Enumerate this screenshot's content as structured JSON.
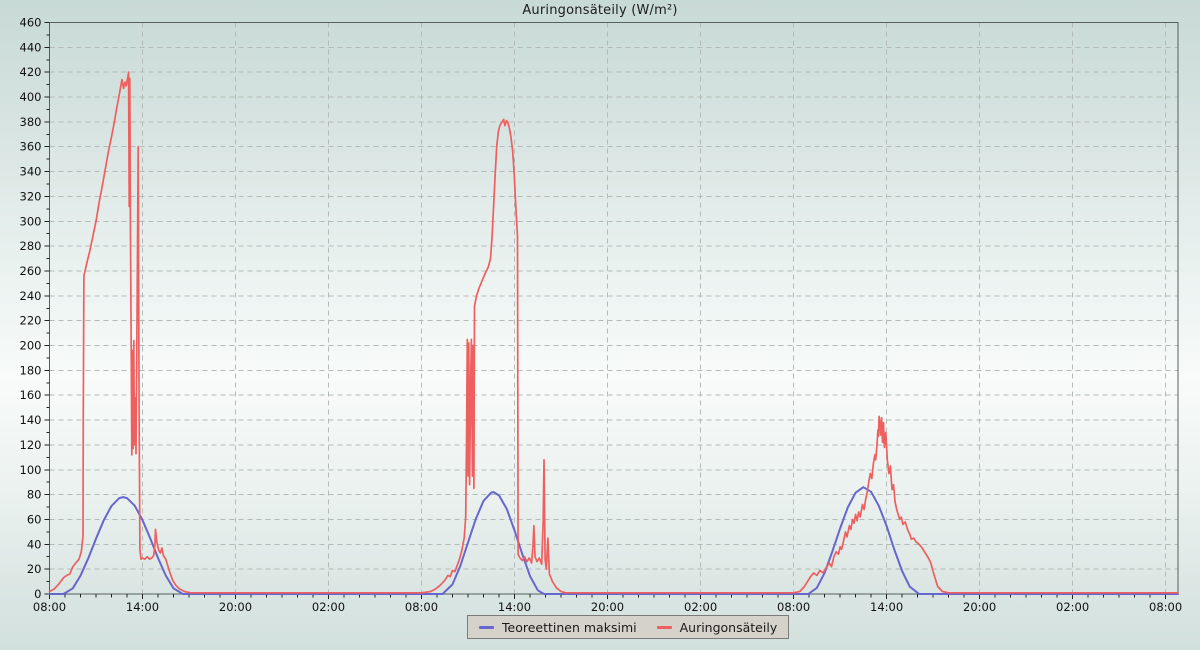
{
  "window": {
    "title": "Auringonsäteily (W/m²)"
  },
  "legend": {
    "items": [
      {
        "label": "Teoreettinen maksimi",
        "color": "#6666cf"
      },
      {
        "label": "Auringonsäteily",
        "color": "#ee5f5f"
      }
    ]
  },
  "chart_data": {
    "type": "line",
    "title": "Auringonsäteily (W/m²)",
    "ylabel": "W/m²",
    "x_unit": "time of day over three consecutive days, labels every 6 h",
    "x_range_hours": [
      0,
      72.8
    ],
    "ylim": [
      0,
      460
    ],
    "y_major_step": 20,
    "y_minor_step": 10,
    "x_major_step_hours": 6,
    "x_minor_step_hours": 1,
    "x_tick_labels": [
      "08:00",
      "14:00",
      "20:00",
      "02:00",
      "08:00",
      "14:00",
      "20:00",
      "02:00",
      "08:00",
      "14:00",
      "20:00",
      "02:00",
      "08:00"
    ],
    "grid": {
      "dashed": true,
      "color": "#b4bab7"
    },
    "frame_color": "#55605d",
    "tick_color": "#222222",
    "label_color": "#111111",
    "legend_position": "bottom-center",
    "series": [
      {
        "name": "Teoreettinen maksimi",
        "color": "#6666cf",
        "width": 2,
        "points": [
          [
            0,
            0
          ],
          [
            0.9,
            0
          ],
          [
            1.5,
            4.6
          ],
          [
            2,
            14.7
          ],
          [
            2.5,
            28.8
          ],
          [
            3,
            44.5
          ],
          [
            3.5,
            59.4
          ],
          [
            4,
            70.9
          ],
          [
            4.5,
            77.2
          ],
          [
            4.75,
            78
          ],
          [
            5,
            77.2
          ],
          [
            5.5,
            71
          ],
          [
            6,
            59.5
          ],
          [
            6.5,
            44.7
          ],
          [
            7,
            29
          ],
          [
            7.5,
            14.8
          ],
          [
            8,
            4.6
          ],
          [
            8.6,
            0
          ],
          [
            25.35,
            0
          ],
          [
            26,
            7.7
          ],
          [
            26.5,
            22.5
          ],
          [
            27,
            41.5
          ],
          [
            27.5,
            60.4
          ],
          [
            28,
            74.9
          ],
          [
            28.5,
            81.7
          ],
          [
            28.65,
            82
          ],
          [
            29,
            79.4
          ],
          [
            29.5,
            68.4
          ],
          [
            30,
            51.2
          ],
          [
            30.5,
            32
          ],
          [
            31,
            14.4
          ],
          [
            31.5,
            3
          ],
          [
            31.9,
            0
          ],
          [
            48.95,
            0
          ],
          [
            49.5,
            4.9
          ],
          [
            50,
            17
          ],
          [
            50.5,
            34.1
          ],
          [
            51,
            52.8
          ],
          [
            51.5,
            69.7
          ],
          [
            52,
            81.5
          ],
          [
            52.5,
            86
          ],
          [
            53,
            82.3
          ],
          [
            53.5,
            71
          ],
          [
            54,
            54.7
          ],
          [
            54.5,
            35.8
          ],
          [
            55,
            18.5
          ],
          [
            55.5,
            5.9
          ],
          [
            56.1,
            0
          ],
          [
            72.8,
            0
          ]
        ]
      },
      {
        "name": "Auringonsäteily",
        "color": "#ee5f5f",
        "width": 1.7,
        "points": [
          [
            0,
            2
          ],
          [
            0.3,
            4
          ],
          [
            0.6,
            8
          ],
          [
            0.9,
            13
          ],
          [
            1.1,
            15
          ],
          [
            1.3,
            16
          ],
          [
            1.5,
            22
          ],
          [
            1.7,
            25
          ],
          [
            1.9,
            28
          ],
          [
            2.05,
            34
          ],
          [
            2.12,
            42
          ],
          [
            2.16,
            46
          ],
          [
            2.18,
            150
          ],
          [
            2.22,
            256
          ],
          [
            2.4,
            266
          ],
          [
            2.6,
            276
          ],
          [
            2.8,
            288
          ],
          [
            3,
            300
          ],
          [
            3.2,
            315
          ],
          [
            3.4,
            328
          ],
          [
            3.6,
            342
          ],
          [
            3.8,
            356
          ],
          [
            4,
            368
          ],
          [
            4.2,
            381
          ],
          [
            4.35,
            392
          ],
          [
            4.5,
            402
          ],
          [
            4.6,
            409
          ],
          [
            4.68,
            414
          ],
          [
            4.78,
            407
          ],
          [
            4.88,
            412
          ],
          [
            4.95,
            409
          ],
          [
            5.05,
            416
          ],
          [
            5.1,
            420
          ],
          [
            5.14,
            312
          ],
          [
            5.18,
            415
          ],
          [
            5.22,
            300
          ],
          [
            5.27,
            198
          ],
          [
            5.31,
            112
          ],
          [
            5.35,
            196
          ],
          [
            5.39,
            117
          ],
          [
            5.44,
            204
          ],
          [
            5.48,
            120
          ],
          [
            5.53,
            158
          ],
          [
            5.58,
            113
          ],
          [
            5.65,
            230
          ],
          [
            5.72,
            360
          ],
          [
            5.78,
            150
          ],
          [
            5.83,
            36
          ],
          [
            5.9,
            28
          ],
          [
            6,
            29
          ],
          [
            6.15,
            28
          ],
          [
            6.3,
            30
          ],
          [
            6.45,
            28
          ],
          [
            6.6,
            29
          ],
          [
            6.72,
            31
          ],
          [
            6.8,
            40
          ],
          [
            6.84,
            52
          ],
          [
            6.92,
            42
          ],
          [
            7.05,
            35
          ],
          [
            7.15,
            33
          ],
          [
            7.25,
            37
          ],
          [
            7.35,
            31
          ],
          [
            7.5,
            28
          ],
          [
            7.65,
            22
          ],
          [
            7.8,
            16
          ],
          [
            7.95,
            11
          ],
          [
            8.15,
            7
          ],
          [
            8.4,
            4
          ],
          [
            8.7,
            2
          ],
          [
            9.1,
            1
          ],
          [
            12,
            1
          ],
          [
            18,
            1
          ],
          [
            24,
            1
          ],
          [
            24.6,
            2
          ],
          [
            24.9,
            4
          ],
          [
            25.2,
            7
          ],
          [
            25.5,
            11
          ],
          [
            25.7,
            15
          ],
          [
            25.85,
            14
          ],
          [
            26,
            19
          ],
          [
            26.15,
            18
          ],
          [
            26.3,
            23
          ],
          [
            26.45,
            28
          ],
          [
            26.6,
            35
          ],
          [
            26.75,
            45
          ],
          [
            26.85,
            62
          ],
          [
            26.9,
            120
          ],
          [
            26.95,
            205
          ],
          [
            27,
            95
          ],
          [
            27.05,
            202
          ],
          [
            27.1,
            88
          ],
          [
            27.18,
            178
          ],
          [
            27.22,
            205
          ],
          [
            27.28,
            95
          ],
          [
            27.32,
            200
          ],
          [
            27.38,
            85
          ],
          [
            27.42,
            232
          ],
          [
            27.55,
            240
          ],
          [
            27.7,
            246
          ],
          [
            27.9,
            252
          ],
          [
            28.1,
            258
          ],
          [
            28.3,
            263
          ],
          [
            28.45,
            270
          ],
          [
            28.55,
            288
          ],
          [
            28.65,
            312
          ],
          [
            28.75,
            338
          ],
          [
            28.85,
            360
          ],
          [
            28.95,
            372
          ],
          [
            29.05,
            377
          ],
          [
            29.15,
            379
          ],
          [
            29.3,
            382
          ],
          [
            29.38,
            377
          ],
          [
            29.48,
            381
          ],
          [
            29.58,
            379
          ],
          [
            29.68,
            374
          ],
          [
            29.78,
            367
          ],
          [
            29.88,
            356
          ],
          [
            29.98,
            338
          ],
          [
            30.08,
            312
          ],
          [
            30.15,
            296
          ],
          [
            30.19,
            288
          ],
          [
            30.23,
            32
          ],
          [
            30.35,
            29
          ],
          [
            30.5,
            27
          ],
          [
            30.65,
            30
          ],
          [
            30.8,
            26
          ],
          [
            30.95,
            29
          ],
          [
            31.1,
            25
          ],
          [
            31.2,
            40
          ],
          [
            31.25,
            55
          ],
          [
            31.32,
            30
          ],
          [
            31.45,
            26
          ],
          [
            31.6,
            29
          ],
          [
            31.75,
            24
          ],
          [
            31.85,
            60
          ],
          [
            31.9,
            108
          ],
          [
            31.97,
            28
          ],
          [
            32.05,
            20
          ],
          [
            32.15,
            45
          ],
          [
            32.25,
            16
          ],
          [
            32.45,
            10
          ],
          [
            32.7,
            5
          ],
          [
            33,
            2
          ],
          [
            33.3,
            1
          ],
          [
            36,
            1
          ],
          [
            42,
            1
          ],
          [
            48,
            1
          ],
          [
            48.4,
            2
          ],
          [
            48.7,
            6
          ],
          [
            48.9,
            10
          ],
          [
            49.1,
            14
          ],
          [
            49.3,
            17
          ],
          [
            49.5,
            15
          ],
          [
            49.7,
            19
          ],
          [
            49.9,
            17
          ],
          [
            50.1,
            21
          ],
          [
            50.3,
            25
          ],
          [
            50.45,
            22
          ],
          [
            50.6,
            30
          ],
          [
            50.75,
            34
          ],
          [
            50.9,
            32
          ],
          [
            51,
            38
          ],
          [
            51.1,
            36
          ],
          [
            51.25,
            44
          ],
          [
            51.35,
            50
          ],
          [
            51.45,
            46
          ],
          [
            51.6,
            55
          ],
          [
            51.7,
            52
          ],
          [
            51.8,
            60
          ],
          [
            51.9,
            57
          ],
          [
            52,
            64
          ],
          [
            52.1,
            59
          ],
          [
            52.2,
            66
          ],
          [
            52.3,
            62
          ],
          [
            52.45,
            72
          ],
          [
            52.55,
            68
          ],
          [
            52.65,
            76
          ],
          [
            52.75,
            82
          ],
          [
            52.85,
            90
          ],
          [
            52.95,
            97
          ],
          [
            53.05,
            93
          ],
          [
            53.15,
            105
          ],
          [
            53.25,
            112
          ],
          [
            53.3,
            108
          ],
          [
            53.38,
            120
          ],
          [
            53.44,
            132
          ],
          [
            53.48,
            127
          ],
          [
            53.52,
            143
          ],
          [
            53.58,
            136
          ],
          [
            53.62,
            128
          ],
          [
            53.68,
            142
          ],
          [
            53.74,
            122
          ],
          [
            53.8,
            138
          ],
          [
            53.86,
            118
          ],
          [
            53.95,
            130
          ],
          [
            54.05,
            108
          ],
          [
            54.15,
            97
          ],
          [
            54.25,
            103
          ],
          [
            54.35,
            84
          ],
          [
            54.45,
            88
          ],
          [
            54.55,
            74
          ],
          [
            54.65,
            68
          ],
          [
            54.75,
            64
          ],
          [
            54.85,
            60
          ],
          [
            54.95,
            62
          ],
          [
            55.05,
            56
          ],
          [
            55.2,
            58
          ],
          [
            55.35,
            52
          ],
          [
            55.5,
            48
          ],
          [
            55.6,
            44
          ],
          [
            55.75,
            45
          ],
          [
            55.9,
            42
          ],
          [
            56.1,
            40
          ],
          [
            56.3,
            37
          ],
          [
            56.5,
            33
          ],
          [
            56.7,
            29
          ],
          [
            56.85,
            25
          ],
          [
            57,
            18
          ],
          [
            57.15,
            12
          ],
          [
            57.3,
            6
          ],
          [
            57.6,
            2
          ],
          [
            58,
            1
          ],
          [
            64,
            1
          ],
          [
            70,
            1
          ],
          [
            72.8,
            1
          ]
        ]
      }
    ]
  }
}
